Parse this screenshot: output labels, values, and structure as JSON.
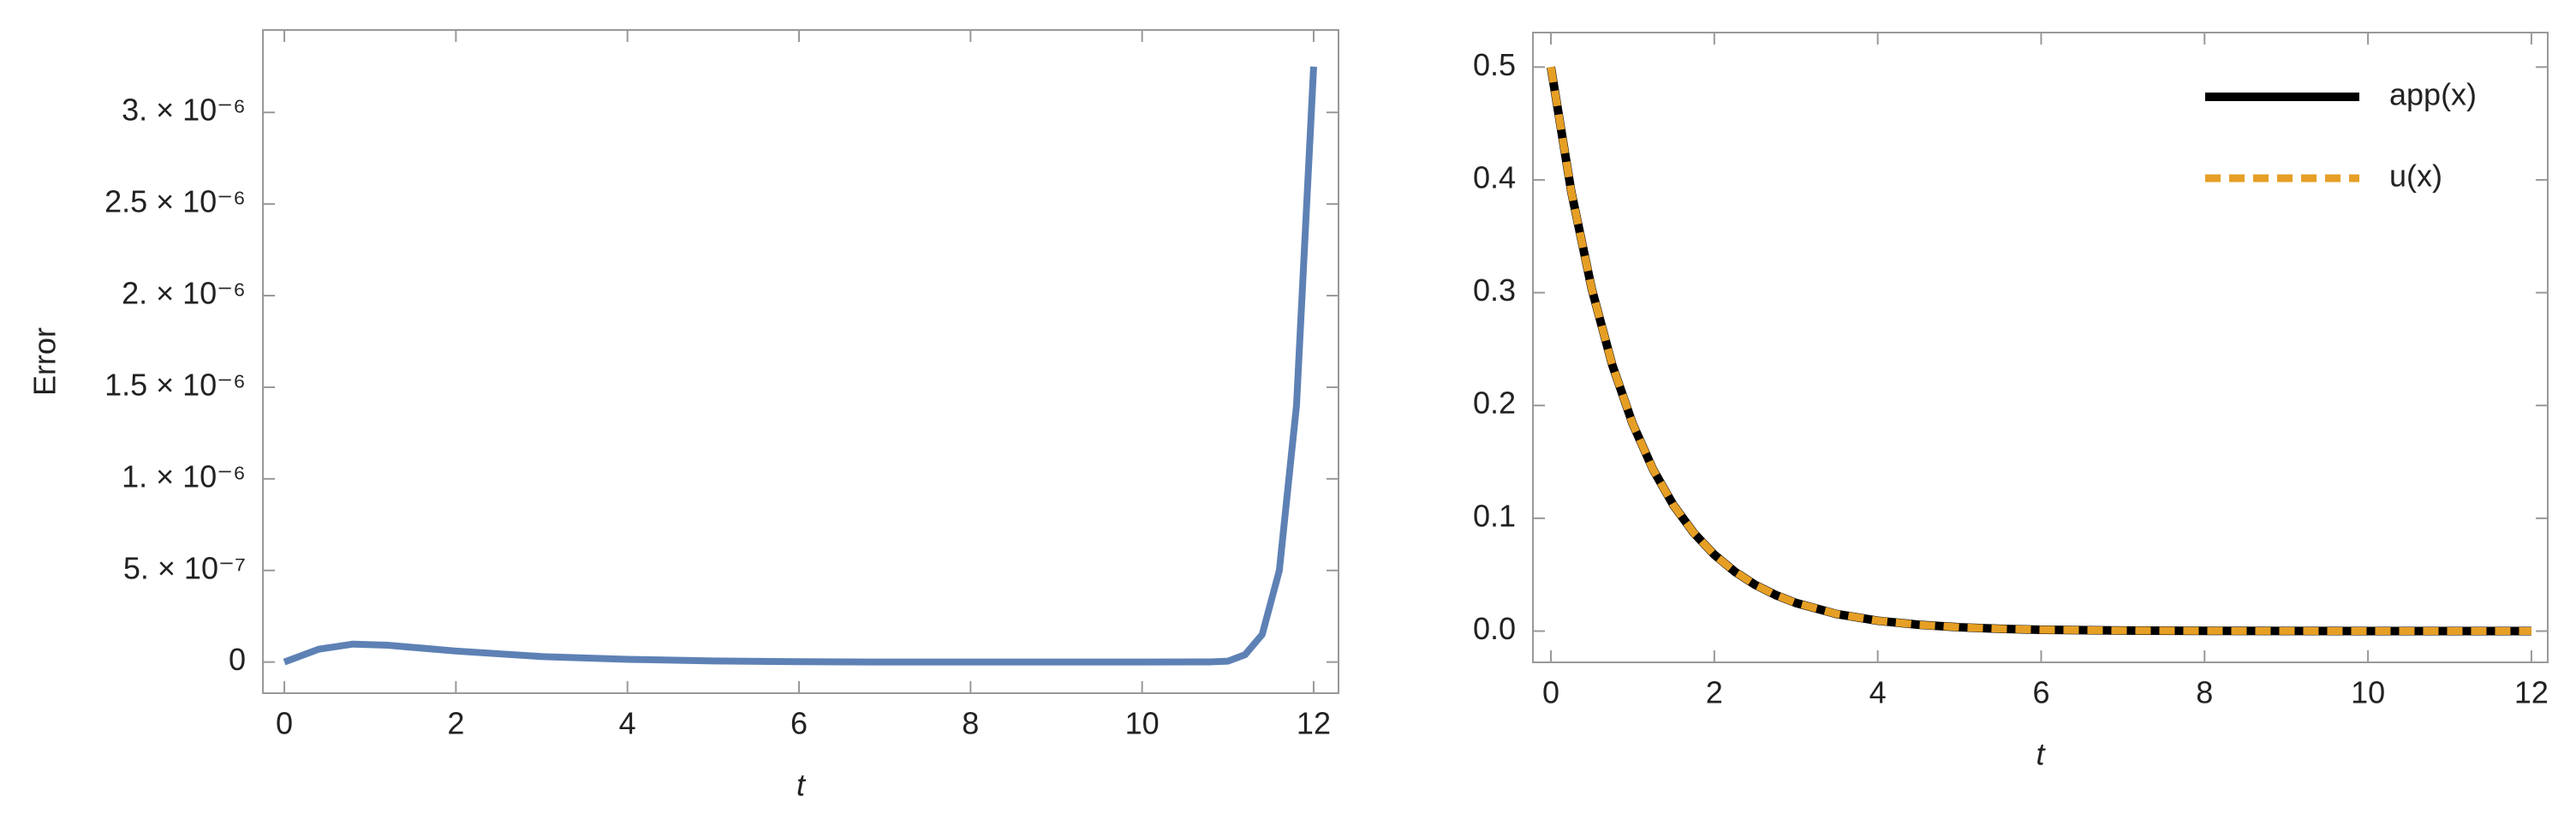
{
  "chart_data": [
    {
      "type": "line",
      "xlabel": "t",
      "ylabel": "Error",
      "x": [
        0,
        0.4,
        0.8,
        1.2,
        2,
        3,
        4,
        5,
        6,
        7,
        8,
        9,
        10,
        10.8,
        11,
        11.2,
        11.4,
        11.6,
        11.8,
        12
      ],
      "values": [
        0,
        7e-08,
        9.8e-08,
        9.2e-08,
        6e-08,
        3e-08,
        1.5e-08,
        6e-09,
        2e-09,
        0,
        0,
        0,
        0,
        1e-09,
        5e-09,
        4e-08,
        1.5e-07,
        5e-07,
        1.4e-06,
        3.25e-06
      ],
      "color": "#5e81b5",
      "xlim": [
        -0.25,
        12.29
      ],
      "ylim": [
        -1.7e-07,
        3.45e-06
      ],
      "xticks": [
        0,
        2,
        4,
        6,
        8,
        10,
        12
      ],
      "yticks": [
        0,
        {
          "value": 5e-07,
          "label": "5. × 10⁻⁷"
        },
        {
          "value": 1e-06,
          "label": "1. × 10⁻⁶"
        },
        {
          "value": 1.5e-06,
          "label": "1.5 × 10⁻⁶"
        },
        {
          "value": 2e-06,
          "label": "2. × 10⁻⁶"
        },
        {
          "value": 2.5e-06,
          "label": "2.5 × 10⁻⁶"
        },
        {
          "value": 3e-06,
          "label": "3. × 10⁻⁶"
        }
      ]
    },
    {
      "type": "line",
      "xlabel": "t",
      "legend": "top right",
      "x": [
        0,
        0.25,
        0.5,
        0.75,
        1,
        1.25,
        1.5,
        1.75,
        2,
        2.25,
        2.5,
        2.75,
        3,
        3.5,
        4,
        4.5,
        5,
        5.5,
        6,
        7,
        8,
        9,
        10,
        11,
        12
      ],
      "series": [
        {
          "name": "app(x)",
          "color": "#000000",
          "dashed": false,
          "values": [
            0.5,
            0.3894,
            0.3033,
            0.2362,
            0.1839,
            0.1433,
            0.1116,
            0.0869,
            0.0677,
            0.0527,
            0.041,
            0.032,
            0.0249,
            0.0151,
            0.0092,
            0.0056,
            0.0034,
            0.002,
            0.0012,
            0.0005,
            0.0002,
            0.0001,
            0,
            0,
            0
          ]
        },
        {
          "name": "u(x)",
          "color": "#e69f25",
          "dashed": true,
          "values": [
            0.5,
            0.3894,
            0.3033,
            0.2362,
            0.1839,
            0.1433,
            0.1116,
            0.0869,
            0.0677,
            0.0527,
            0.041,
            0.032,
            0.0249,
            0.0151,
            0.0092,
            0.0056,
            0.0034,
            0.002,
            0.0012,
            0.0005,
            0.0002,
            0.0001,
            0,
            0,
            0
          ]
        }
      ],
      "xlim": [
        -0.22,
        12.2
      ],
      "ylim": [
        -0.0277,
        0.5306
      ],
      "xticks": [
        0,
        2,
        4,
        6,
        8,
        10,
        12
      ],
      "yticks": [
        {
          "value": 0,
          "label": "0.0"
        },
        0.1,
        0.2,
        0.3,
        0.4,
        0.5
      ]
    }
  ]
}
